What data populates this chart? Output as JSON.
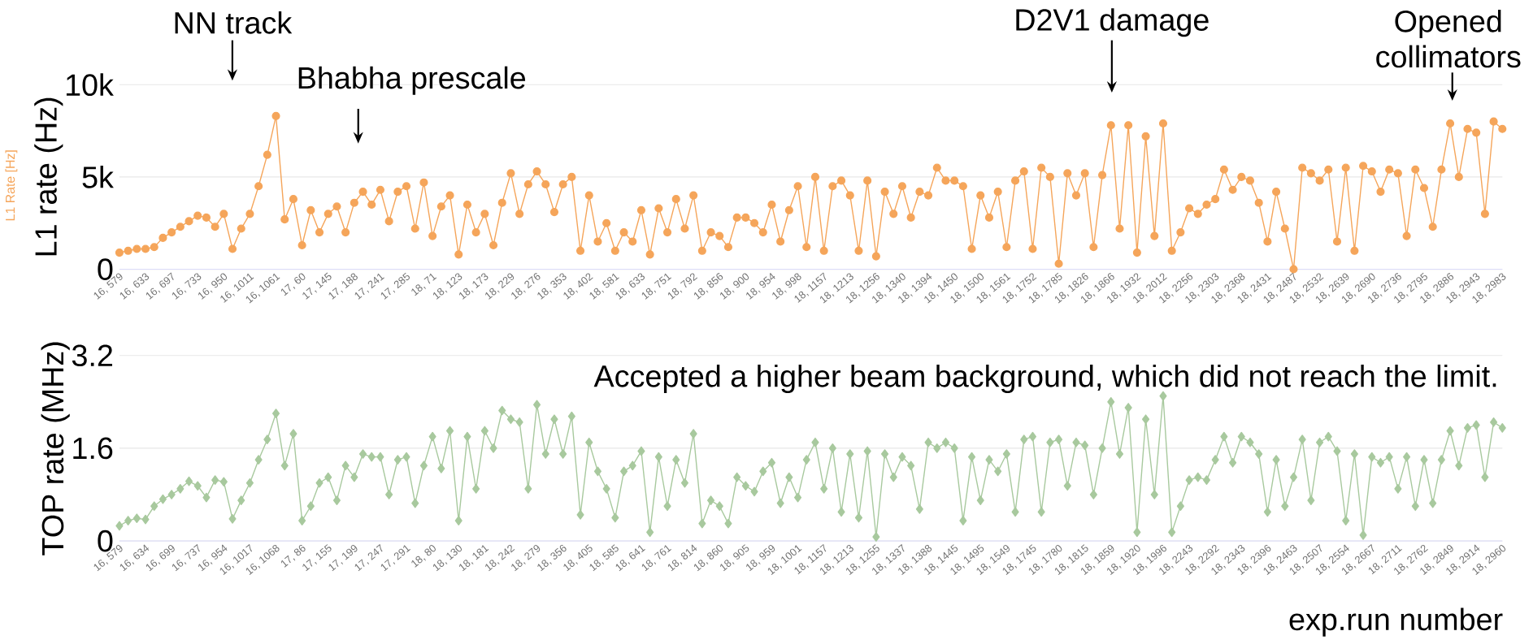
{
  "chart_data": [
    {
      "type": "line",
      "ylabel": "L1 rate (Hz)",
      "marker": "circle",
      "line_style": "solid",
      "grid": "y",
      "categories": [
        "16, 579",
        null,
        null,
        "16, 633",
        null,
        null,
        "16, 697",
        null,
        null,
        "16, 733",
        null,
        null,
        "16, 950",
        null,
        null,
        "16, 1011",
        null,
        null,
        "16, 1061",
        null,
        null,
        "17, 60",
        null,
        null,
        "17, 145",
        null,
        null,
        "17, 188",
        null,
        null,
        "17, 241",
        null,
        null,
        "17, 285",
        null,
        null,
        "18, 71",
        null,
        null,
        "18, 123",
        null,
        null,
        "18, 173",
        null,
        null,
        "18, 229",
        null,
        null,
        "18, 276",
        null,
        null,
        "18, 353",
        null,
        null,
        "18, 402",
        null,
        null,
        "18, 581",
        null,
        null,
        "18, 633",
        null,
        null,
        "18, 751",
        null,
        null,
        "18, 792",
        null,
        null,
        "18, 856",
        null,
        null,
        "18, 900",
        null,
        null,
        "18, 954",
        null,
        null,
        "18, 998",
        null,
        null,
        "18, 1157",
        null,
        null,
        "18, 1213",
        null,
        null,
        "18, 1256",
        null,
        null,
        "18, 1340",
        null,
        null,
        "18, 1394",
        null,
        null,
        "18, 1450",
        null,
        null,
        "18, 1500",
        null,
        null,
        "18, 1561",
        null,
        null,
        "18, 1752",
        null,
        null,
        "18, 1785",
        null,
        null,
        "18, 1826",
        null,
        null,
        "18, 1866",
        null,
        null,
        "18, 1932",
        null,
        null,
        "18, 2012",
        null,
        null,
        "18, 2256",
        null,
        null,
        "18, 2303",
        null,
        null,
        "18, 2368",
        null,
        null,
        "18, 2431",
        null,
        null,
        "18, 2487",
        null,
        null,
        "18, 2532",
        null,
        null,
        "18, 2639",
        null,
        null,
        "18, 2690",
        null,
        null,
        "18, 2736",
        null,
        null,
        "18, 2795",
        null,
        null,
        "18, 2886",
        null,
        null,
        "18, 2943",
        null,
        null,
        "18, 2983"
      ],
      "series": [
        {
          "color": "#f5a55a",
          "values": [
            900,
            1000,
            1100,
            1100,
            1200,
            1700,
            2000,
            2300,
            2600,
            2900,
            2800,
            2300,
            3000,
            1100,
            2200,
            3000,
            4500,
            6200,
            8300,
            2700,
            3800,
            1300,
            3200,
            2000,
            3000,
            3400,
            2000,
            3600,
            4200,
            3500,
            4300,
            2600,
            4200,
            4500,
            2200,
            4700,
            1800,
            3400,
            4000,
            800,
            3500,
            2000,
            3000,
            1300,
            3600,
            5200,
            3000,
            4600,
            5300,
            4600,
            3100,
            4600,
            5000,
            1000,
            4000,
            1500,
            2500,
            1000,
            2000,
            1500,
            3200,
            800,
            3300,
            2000,
            3800,
            2200,
            4000,
            1000,
            2000,
            1800,
            1200,
            2800,
            2800,
            2500,
            2000,
            3500,
            1500,
            3200,
            4500,
            1200,
            5000,
            1000,
            4500,
            4800,
            4000,
            1000,
            4800,
            700,
            4200,
            3000,
            4500,
            2800,
            4200,
            4000,
            5500,
            4800,
            4800,
            4500,
            1100,
            4000,
            2800,
            4200,
            1200,
            4800,
            5300,
            1100,
            5500,
            5000,
            300,
            5200,
            4000,
            5200,
            1200,
            5100,
            7800,
            2200,
            7800,
            900,
            7200,
            1800,
            7900,
            1000,
            2000,
            3300,
            3000,
            3500,
            3800,
            5400,
            4300,
            5000,
            4800,
            3600,
            1500,
            4200,
            2200,
            0,
            5500,
            5200,
            4800,
            5400,
            1500,
            5500,
            1000,
            5600,
            5300,
            4200,
            5400,
            5200,
            1800,
            5400,
            4400,
            2300,
            5400,
            7900,
            5000,
            7600,
            7400,
            3000,
            8000,
            7600
          ]
        }
      ],
      "ylim": [
        0,
        10000
      ],
      "yticks": [
        {
          "value": 0,
          "label": "0"
        },
        {
          "value": 5000,
          "label": "5k"
        },
        {
          "value": 10000,
          "label": "10k"
        }
      ],
      "annotations": [
        "NN track",
        "Bhabha prescale",
        "D2V1 damage",
        "Opened collimators",
        "L1 Rate [Hz]"
      ]
    },
    {
      "type": "line",
      "ylabel": "TOP rate (MHz)",
      "xlabel": "exp.run number",
      "marker": "diamond",
      "line_style": "solid",
      "grid": "y",
      "categories": [
        "16, 579",
        null,
        null,
        "16, 634",
        null,
        null,
        "16, 699",
        null,
        null,
        "16, 737",
        null,
        null,
        "16, 954",
        null,
        null,
        "16, 1017",
        null,
        null,
        "16, 1068",
        null,
        null,
        "17, 86",
        null,
        null,
        "17, 155",
        null,
        null,
        "17, 199",
        null,
        null,
        "17, 247",
        null,
        null,
        "17, 291",
        null,
        null,
        "18, 80",
        null,
        null,
        "18, 130",
        null,
        null,
        "18, 181",
        null,
        null,
        "18, 242",
        null,
        null,
        "18, 279",
        null,
        null,
        "18, 356",
        null,
        null,
        "18, 405",
        null,
        null,
        "18, 585",
        null,
        null,
        "18, 641",
        null,
        null,
        "18, 761",
        null,
        null,
        "18, 814",
        null,
        null,
        "18, 860",
        null,
        null,
        "18, 905",
        null,
        null,
        "18, 959",
        null,
        null,
        "18, 1001",
        null,
        null,
        "18, 1157",
        null,
        null,
        "18, 1213",
        null,
        null,
        "18, 1255",
        null,
        null,
        "18, 1337",
        null,
        null,
        "18, 1388",
        null,
        null,
        "18, 1445",
        null,
        null,
        "18, 1495",
        null,
        null,
        "18, 1549",
        null,
        null,
        "18, 1745",
        null,
        null,
        "18, 1780",
        null,
        null,
        "18, 1815",
        null,
        null,
        "18, 1859",
        null,
        null,
        "18, 1920",
        null,
        null,
        "18, 1996",
        null,
        null,
        "18, 2243",
        null,
        null,
        "18, 2292",
        null,
        null,
        "18, 2343",
        null,
        null,
        "18, 2396",
        null,
        null,
        "18, 2463",
        null,
        null,
        "18, 2507",
        null,
        null,
        "18, 2554",
        null,
        null,
        "18, 2667",
        null,
        null,
        "18, 2711",
        null,
        null,
        "18, 2762",
        null,
        null,
        "18, 2849",
        null,
        null,
        "18, 2914",
        null,
        null,
        "18, 2960"
      ],
      "series": [
        {
          "color": "#a8c99e",
          "values": [
            0.26,
            0.35,
            0.39,
            0.37,
            0.6,
            0.72,
            0.8,
            0.9,
            1.03,
            0.95,
            0.75,
            1.05,
            1.02,
            0.38,
            0.7,
            1.0,
            1.4,
            1.75,
            2.2,
            1.3,
            1.85,
            0.35,
            0.6,
            1.0,
            1.1,
            0.7,
            1.3,
            1.1,
            1.5,
            1.45,
            1.45,
            0.8,
            1.4,
            1.45,
            0.65,
            1.3,
            1.8,
            1.25,
            1.9,
            0.35,
            1.8,
            0.9,
            1.9,
            1.6,
            2.25,
            2.1,
            2.05,
            0.9,
            2.35,
            1.5,
            2.1,
            1.5,
            2.15,
            0.45,
            1.7,
            1.2,
            0.9,
            0.4,
            1.2,
            1.3,
            1.55,
            0.15,
            1.45,
            0.6,
            1.4,
            1.0,
            1.85,
            0.3,
            0.7,
            0.6,
            0.3,
            1.1,
            0.95,
            0.85,
            1.2,
            1.35,
            0.65,
            1.1,
            0.75,
            1.4,
            1.7,
            0.9,
            1.6,
            0.5,
            1.5,
            0.4,
            1.55,
            0.07,
            1.5,
            1.1,
            1.45,
            1.3,
            0.55,
            1.7,
            1.6,
            1.7,
            1.6,
            0.35,
            1.45,
            0.7,
            1.4,
            1.2,
            1.5,
            0.5,
            1.75,
            1.8,
            0.5,
            1.7,
            1.75,
            0.95,
            1.7,
            1.65,
            0.8,
            1.6,
            2.4,
            1.5,
            2.3,
            0.15,
            2.1,
            0.8,
            2.5,
            0.15,
            0.6,
            1.05,
            1.1,
            1.05,
            1.4,
            1.8,
            1.35,
            1.8,
            1.7,
            1.5,
            0.5,
            1.4,
            0.6,
            1.1,
            1.75,
            0.7,
            1.7,
            1.8,
            1.55,
            0.35,
            1.5,
            0.1,
            1.45,
            1.35,
            1.45,
            0.9,
            1.45,
            0.6,
            1.4,
            0.65,
            1.4,
            1.9,
            1.3,
            1.95,
            2.0,
            1.1,
            2.05,
            1.95
          ]
        }
      ],
      "ylim": [
        0,
        3.2
      ],
      "yticks": [
        0,
        1.6,
        3.2
      ],
      "annotations": [
        "Accepted a higher beam background, which did not reach the limit."
      ]
    }
  ]
}
